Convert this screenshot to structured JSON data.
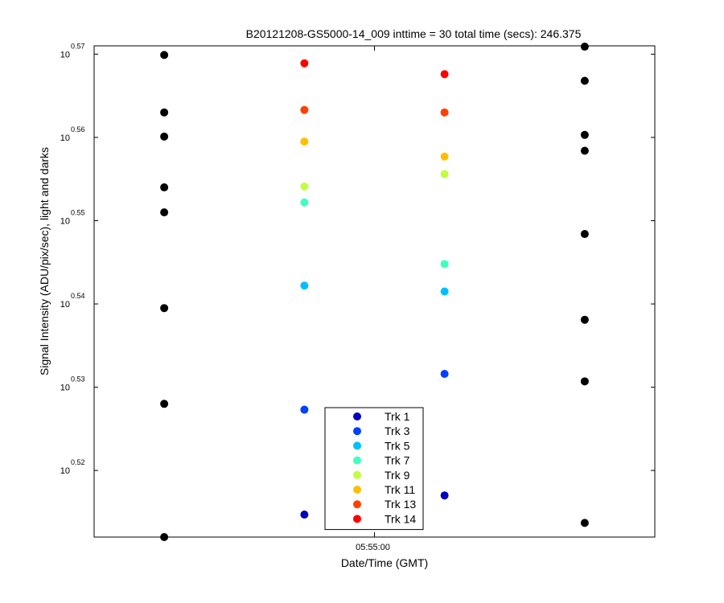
{
  "chart_data": {
    "type": "scatter",
    "title": "B20121208-GS5000-14_009 inttime = 30 total time (secs): 246.375",
    "xlabel": "Date/Time (GMT)",
    "ylabel": "Signal Intensity (ADU/pix/sec), light and darks",
    "y_scale": "log",
    "x_tick_labels": [
      "05:55:00"
    ],
    "y_tick_base": "10",
    "y_tick_exponents": [
      "0.52",
      "0.53",
      "0.54",
      "0.55",
      "0.56",
      "0.57"
    ],
    "y_exponent_range": [
      0.512,
      0.571
    ],
    "x_slots": 4,
    "x_tick_slot": 2.5,
    "series": [
      {
        "name": "Trk 1",
        "color": "#0000bf",
        "points": [
          {
            "slot": 2,
            "exp": 0.5147
          },
          {
            "slot": 3,
            "exp": 0.517
          }
        ]
      },
      {
        "name": "Trk 3",
        "color": "#0040ff",
        "points": [
          {
            "slot": 2,
            "exp": 0.5273
          },
          {
            "slot": 3,
            "exp": 0.5316
          }
        ]
      },
      {
        "name": "Trk 5",
        "color": "#00bfff",
        "points": [
          {
            "slot": 2,
            "exp": 0.5422
          },
          {
            "slot": 3,
            "exp": 0.5415
          }
        ]
      },
      {
        "name": "Trk 7",
        "color": "#40ffbf",
        "points": [
          {
            "slot": 2,
            "exp": 0.5522
          },
          {
            "slot": 3,
            "exp": 0.5448
          }
        ]
      },
      {
        "name": "Trk 9",
        "color": "#bfff40",
        "points": [
          {
            "slot": 2,
            "exp": 0.5541
          },
          {
            "slot": 3,
            "exp": 0.5556
          }
        ]
      },
      {
        "name": "Trk 11",
        "color": "#ffbf00",
        "points": [
          {
            "slot": 2,
            "exp": 0.5595
          },
          {
            "slot": 3,
            "exp": 0.5577
          }
        ]
      },
      {
        "name": "Trk 13",
        "color": "#ff4000",
        "points": [
          {
            "slot": 2,
            "exp": 0.5633
          },
          {
            "slot": 3,
            "exp": 0.563
          }
        ]
      },
      {
        "name": "Trk 14",
        "color": "#ff0000",
        "points": [
          {
            "slot": 2,
            "exp": 0.5689
          },
          {
            "slot": 3,
            "exp": 0.5676
          }
        ]
      }
    ],
    "darks": {
      "color": "#000000",
      "points": [
        {
          "slot": 1,
          "exp": 0.5699
        },
        {
          "slot": 1,
          "exp": 0.563
        },
        {
          "slot": 1,
          "exp": 0.5601
        },
        {
          "slot": 1,
          "exp": 0.554
        },
        {
          "slot": 1,
          "exp": 0.551
        },
        {
          "slot": 1,
          "exp": 0.5395
        },
        {
          "slot": 1,
          "exp": 0.528
        },
        {
          "slot": 1,
          "exp": 0.512
        },
        {
          "slot": 4,
          "exp": 0.5709
        },
        {
          "slot": 4,
          "exp": 0.5668
        },
        {
          "slot": 4,
          "exp": 0.5603
        },
        {
          "slot": 4,
          "exp": 0.5584
        },
        {
          "slot": 4,
          "exp": 0.5484
        },
        {
          "slot": 4,
          "exp": 0.5381
        },
        {
          "slot": 4,
          "exp": 0.5307
        },
        {
          "slot": 4,
          "exp": 0.5137
        }
      ]
    },
    "legend": {
      "placement": "bottom-center"
    },
    "grid": false
  }
}
